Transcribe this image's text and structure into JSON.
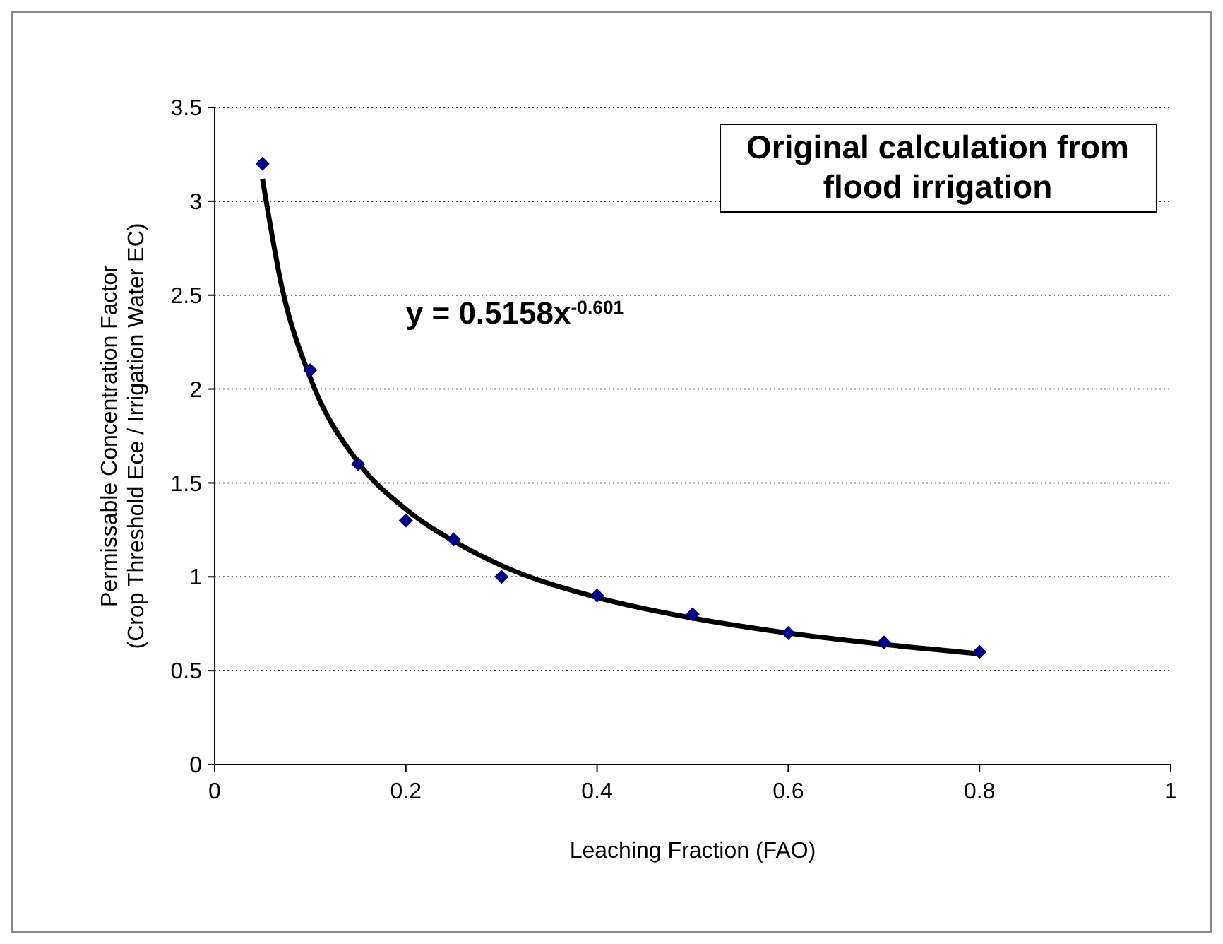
{
  "chart_data": {
    "type": "scatter",
    "title": "Original calculation from flood irrigation",
    "xlabel": "Leaching Fraction (FAO)",
    "ylabel": "Permissable Concentration Factor\n(Crop Threshold Ece / Irrigation Water EC)",
    "annotations": [
      "y = 0.5158x$^{-0.601}$"
    ],
    "x": [
      0.05,
      0.1,
      0.15,
      0.2,
      0.25,
      0.3,
      0.4,
      0.5,
      0.6,
      0.7,
      0.8
    ],
    "series": [
      {
        "type": "scatter",
        "color": "#000080",
        "marker": "diamond",
        "values": [
          3.2,
          2.1,
          1.6,
          1.3,
          1.2,
          1.0,
          0.9,
          0.8,
          0.7,
          0.65,
          0.6
        ]
      },
      {
        "type": "line",
        "color": "#000000",
        "marker": "none",
        "x": [
          0.05,
          0.07,
          0.1,
          0.15,
          0.2,
          0.25,
          0.3,
          0.4,
          0.5,
          0.6,
          0.7,
          0.8
        ],
        "values": [
          3.12,
          2.55,
          2.06,
          1.61,
          1.36,
          1.19,
          1.06,
          0.89,
          0.78,
          0.7,
          0.64,
          0.59
        ]
      }
    ],
    "xlim": [
      0,
      1
    ],
    "xticks": [
      0,
      0.2,
      0.4,
      0.6,
      0.8,
      1
    ],
    "ylim": [
      0,
      3.5
    ],
    "yticks": [
      0,
      0.5,
      1,
      1.5,
      2,
      2.5,
      3,
      3.5
    ],
    "grid": "y"
  }
}
